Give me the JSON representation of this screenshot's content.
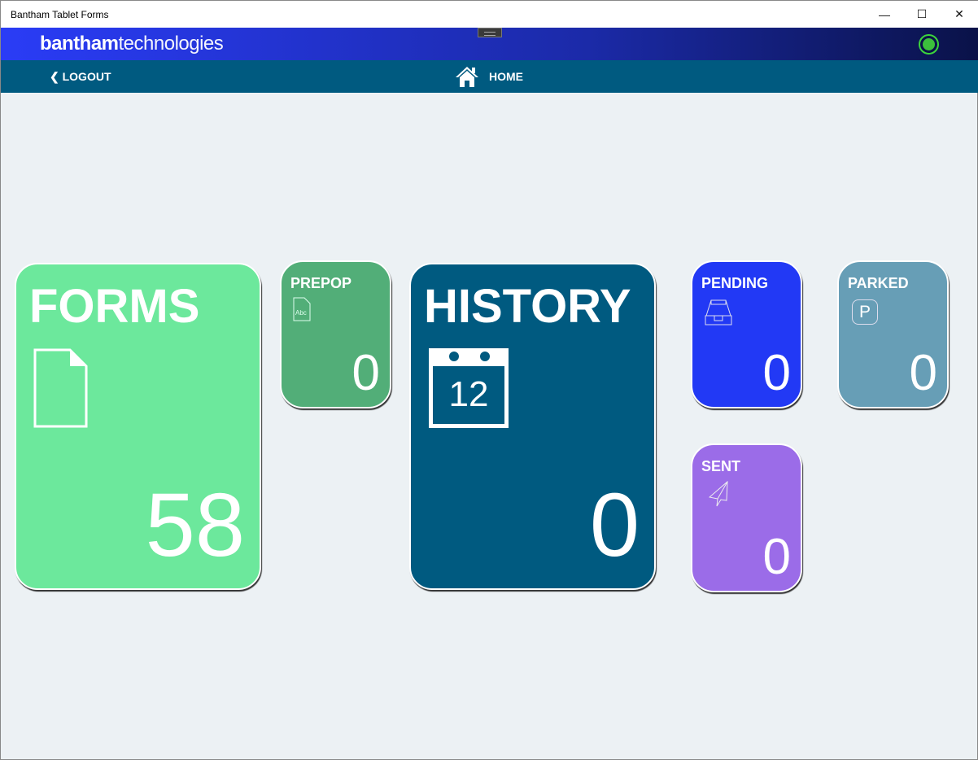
{
  "window": {
    "title": "Bantham Tablet Forms",
    "minimize": "—",
    "maximize": "☐",
    "close": "✕"
  },
  "header": {
    "logo_bold": "bantham",
    "logo_light": "technologies",
    "status_color": "#3cc03c"
  },
  "nav": {
    "logout": "❮ LOGOUT",
    "home": "HOME"
  },
  "tiles": {
    "forms": {
      "label": "FORMS",
      "count": "58",
      "color": "#6ce89c"
    },
    "prepop": {
      "label": "PREPOP",
      "count": "0",
      "icon_text": "Abc",
      "color": "#52ae78"
    },
    "history": {
      "label": "HISTORY",
      "count": "0",
      "calendar_day": "12",
      "color": "#005a80"
    },
    "pending": {
      "label": "PENDING",
      "count": "0",
      "color": "#2239f5"
    },
    "parked": {
      "label": "PARKED",
      "count": "0",
      "icon_text": "P",
      "color": "#679eb6"
    },
    "sent": {
      "label": "SENT",
      "count": "0",
      "color": "#9b6ce8"
    }
  }
}
